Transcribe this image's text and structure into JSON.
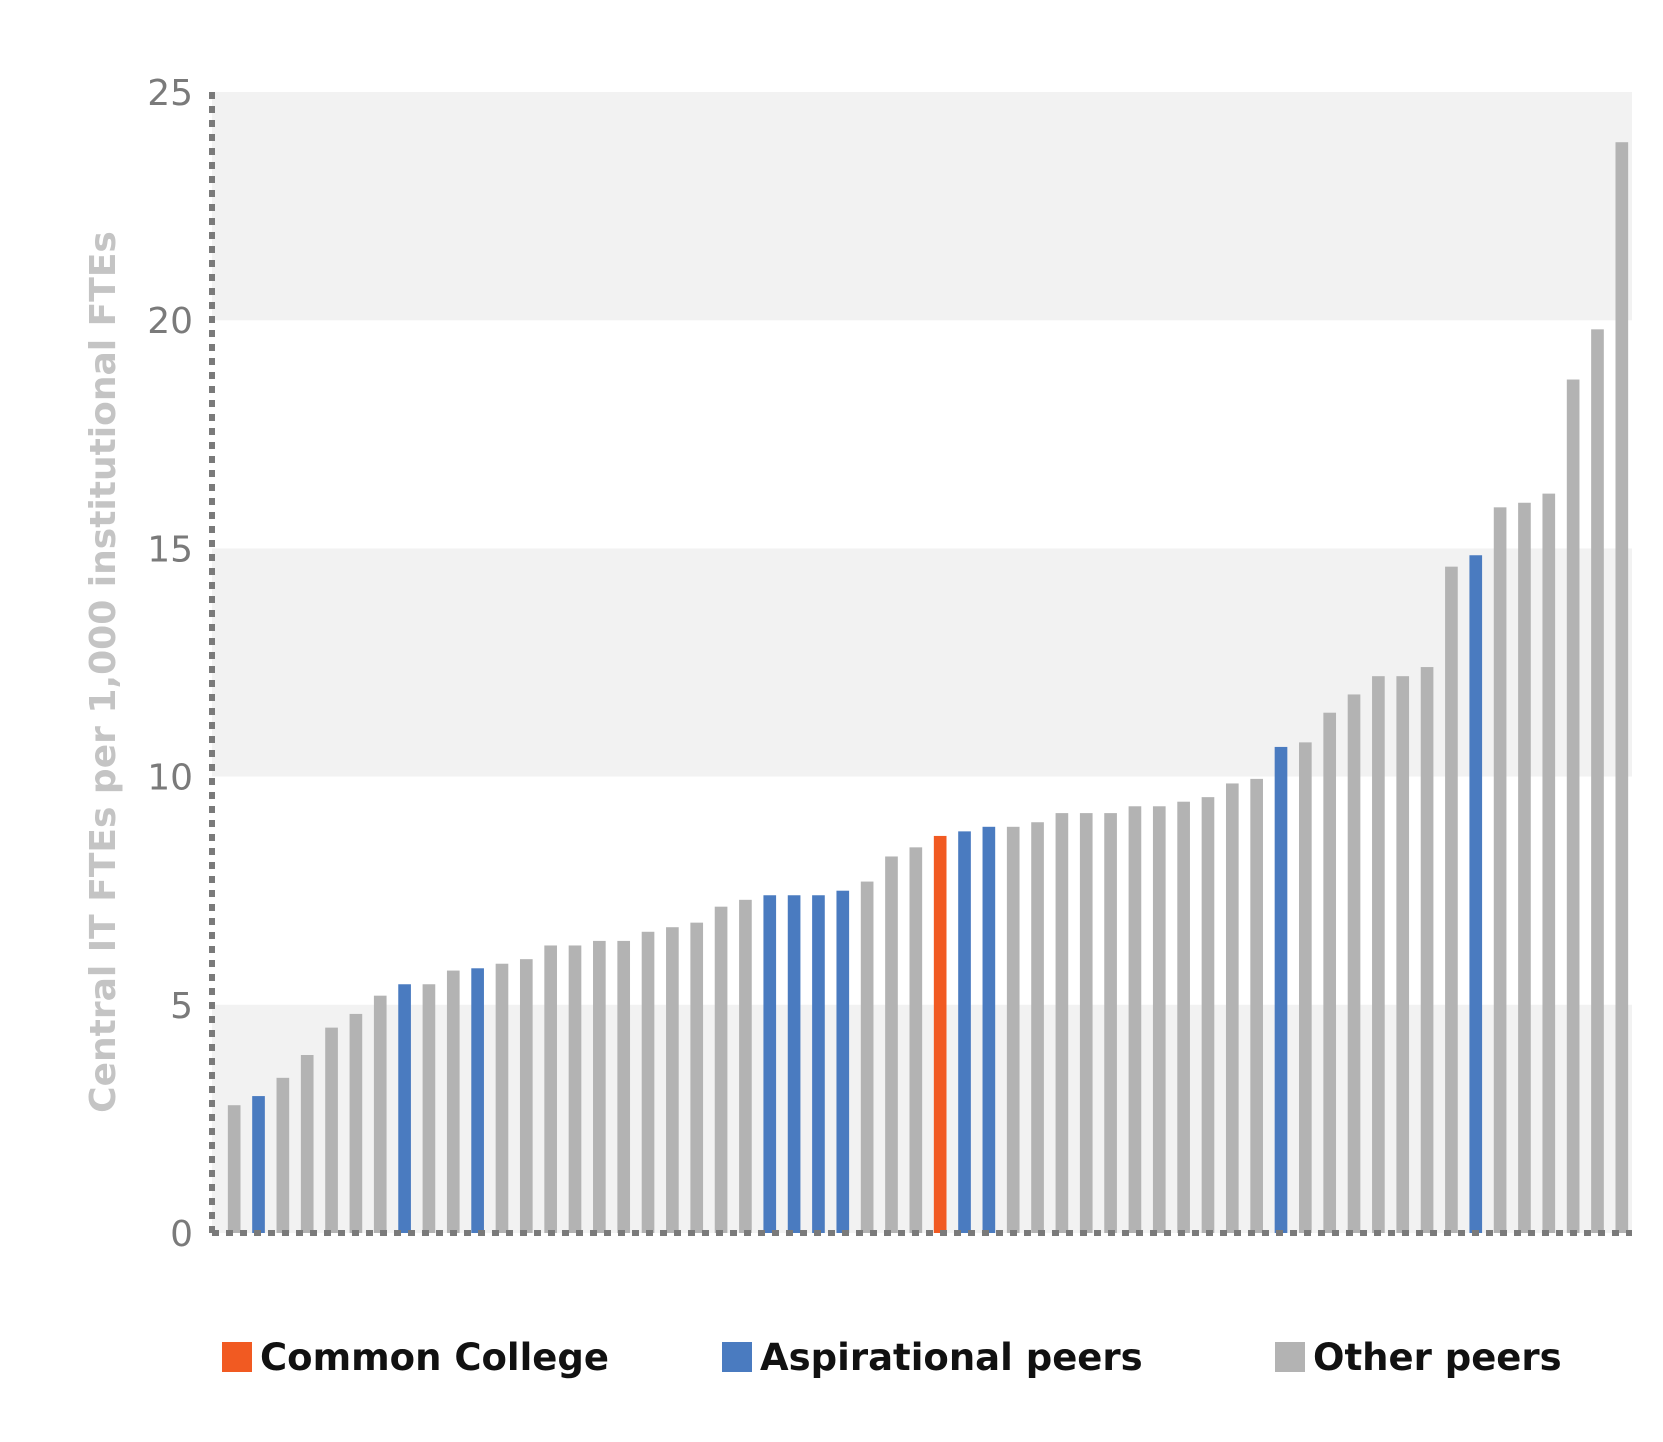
{
  "chart_data": {
    "type": "bar",
    "ylabel": "Central IT FTEs per 1,000 institutional FTEs",
    "ylim": [
      0,
      25
    ],
    "yticks": [
      0,
      5,
      10,
      15,
      20,
      25
    ],
    "grid": "alternating horizontal bands",
    "legend_position": "bottom",
    "legend": [
      {
        "key": "common",
        "label": "Common College",
        "color": "#f15a22"
      },
      {
        "key": "aspirational",
        "label": "Aspirational peers",
        "color": "#4a7bc0"
      },
      {
        "key": "other",
        "label": "Other peers",
        "color": "#b3b3b3"
      }
    ],
    "bars": [
      {
        "value": 2.8,
        "group": "other"
      },
      {
        "value": 3.0,
        "group": "aspirational"
      },
      {
        "value": 3.4,
        "group": "other"
      },
      {
        "value": 3.9,
        "group": "other"
      },
      {
        "value": 4.5,
        "group": "other"
      },
      {
        "value": 4.8,
        "group": "other"
      },
      {
        "value": 5.2,
        "group": "other"
      },
      {
        "value": 5.45,
        "group": "aspirational"
      },
      {
        "value": 5.45,
        "group": "other"
      },
      {
        "value": 5.75,
        "group": "other"
      },
      {
        "value": 5.8,
        "group": "aspirational"
      },
      {
        "value": 5.9,
        "group": "other"
      },
      {
        "value": 6.0,
        "group": "other"
      },
      {
        "value": 6.3,
        "group": "other"
      },
      {
        "value": 6.3,
        "group": "other"
      },
      {
        "value": 6.4,
        "group": "other"
      },
      {
        "value": 6.4,
        "group": "other"
      },
      {
        "value": 6.6,
        "group": "other"
      },
      {
        "value": 6.7,
        "group": "other"
      },
      {
        "value": 6.8,
        "group": "other"
      },
      {
        "value": 7.15,
        "group": "other"
      },
      {
        "value": 7.3,
        "group": "other"
      },
      {
        "value": 7.4,
        "group": "aspirational"
      },
      {
        "value": 7.4,
        "group": "aspirational"
      },
      {
        "value": 7.4,
        "group": "aspirational"
      },
      {
        "value": 7.5,
        "group": "aspirational"
      },
      {
        "value": 7.7,
        "group": "other"
      },
      {
        "value": 8.25,
        "group": "other"
      },
      {
        "value": 8.45,
        "group": "other"
      },
      {
        "value": 8.7,
        "group": "common"
      },
      {
        "value": 8.8,
        "group": "aspirational"
      },
      {
        "value": 8.9,
        "group": "aspirational"
      },
      {
        "value": 8.9,
        "group": "other"
      },
      {
        "value": 9.0,
        "group": "other"
      },
      {
        "value": 9.2,
        "group": "other"
      },
      {
        "value": 9.2,
        "group": "other"
      },
      {
        "value": 9.2,
        "group": "other"
      },
      {
        "value": 9.35,
        "group": "other"
      },
      {
        "value": 9.35,
        "group": "other"
      },
      {
        "value": 9.45,
        "group": "other"
      },
      {
        "value": 9.55,
        "group": "other"
      },
      {
        "value": 9.85,
        "group": "other"
      },
      {
        "value": 9.95,
        "group": "other"
      },
      {
        "value": 10.65,
        "group": "aspirational"
      },
      {
        "value": 10.75,
        "group": "other"
      },
      {
        "value": 11.4,
        "group": "other"
      },
      {
        "value": 11.8,
        "group": "other"
      },
      {
        "value": 12.2,
        "group": "other"
      },
      {
        "value": 12.2,
        "group": "other"
      },
      {
        "value": 12.4,
        "group": "other"
      },
      {
        "value": 14.6,
        "group": "other"
      },
      {
        "value": 14.85,
        "group": "aspirational"
      },
      {
        "value": 15.9,
        "group": "other"
      },
      {
        "value": 16.0,
        "group": "other"
      },
      {
        "value": 16.2,
        "group": "other"
      },
      {
        "value": 18.7,
        "group": "other"
      },
      {
        "value": 19.8,
        "group": "other"
      },
      {
        "value": 23.9,
        "group": "other"
      }
    ]
  },
  "colors": {
    "band": "#f2f2f2",
    "axis": "#7a7a7a"
  }
}
